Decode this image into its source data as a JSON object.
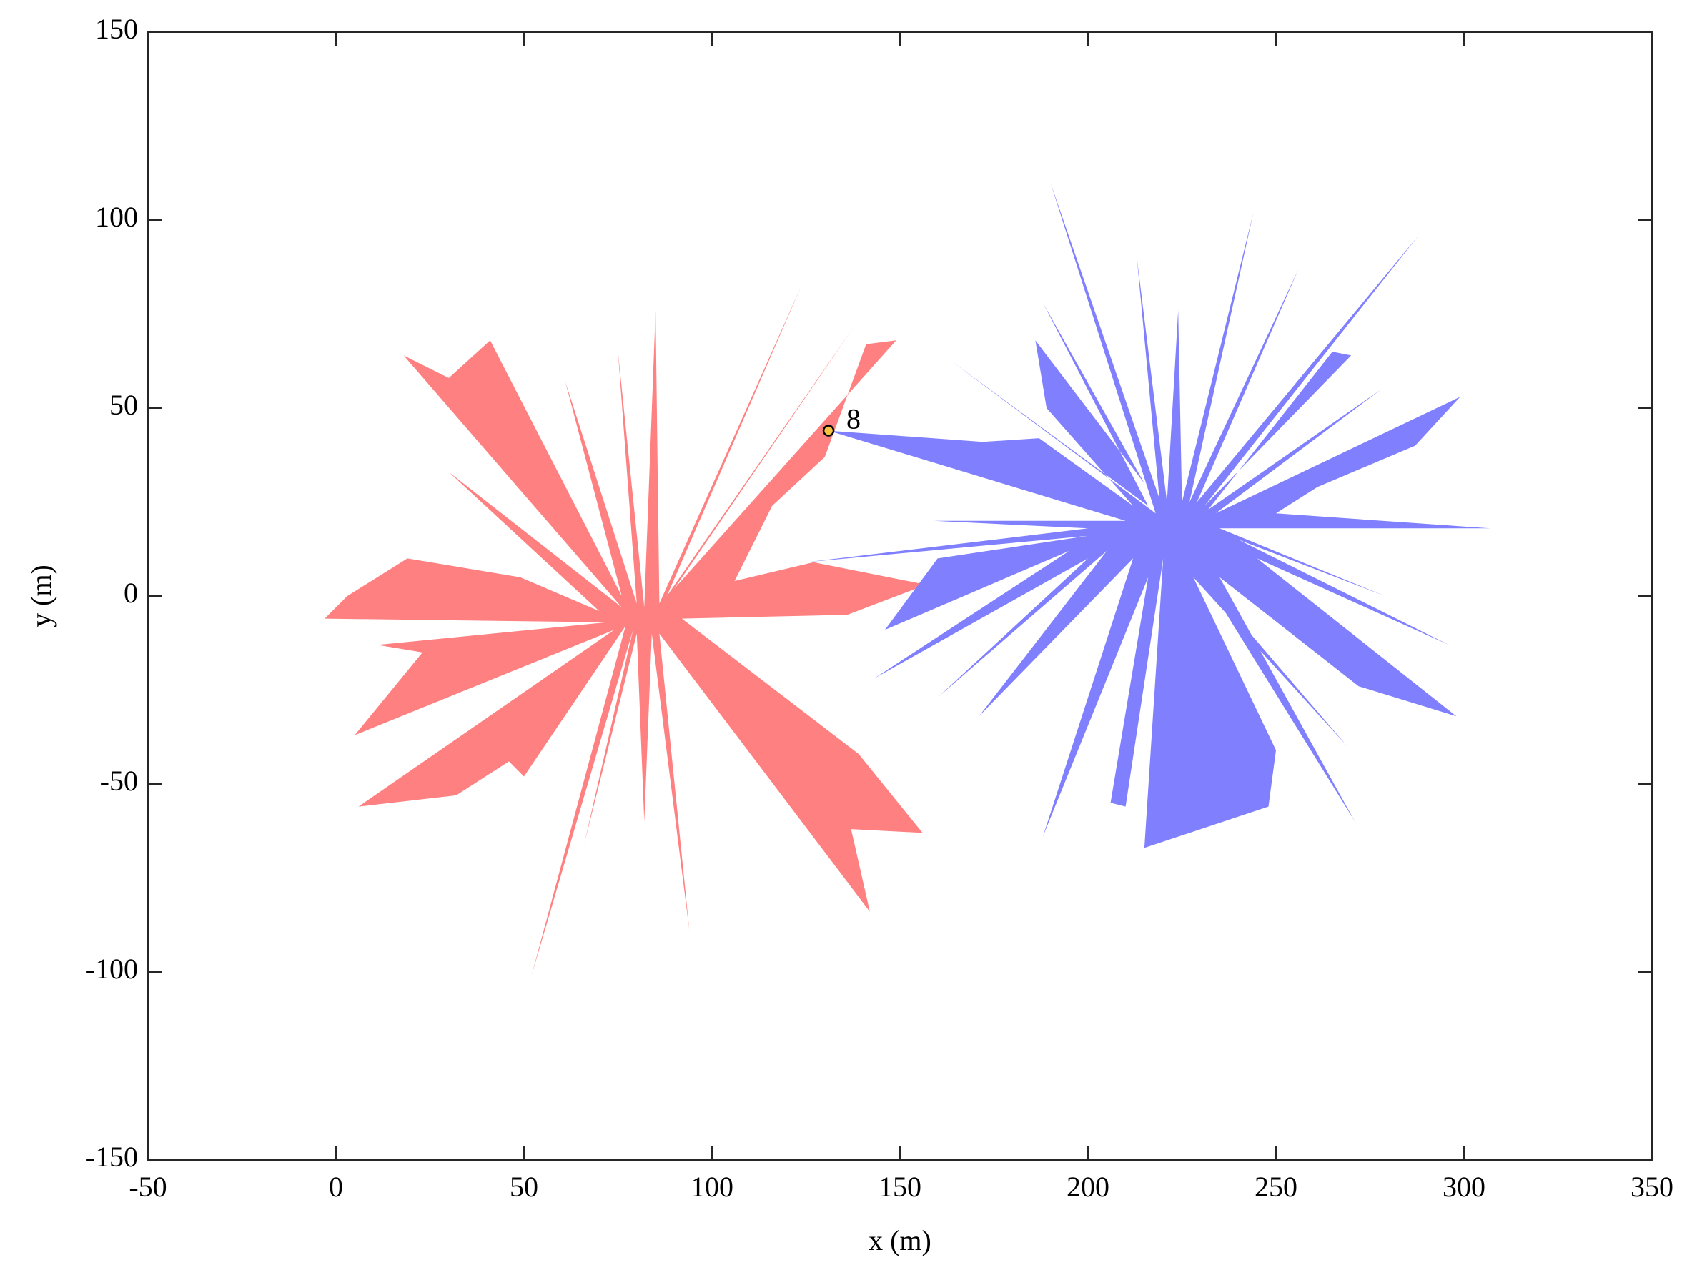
{
  "chart_data": {
    "type": "polygon",
    "xlabel": "x (m)",
    "ylabel": "y (m)",
    "xlim": [
      -50,
      350
    ],
    "xticks": [
      -50,
      0,
      50,
      100,
      150,
      200,
      250,
      300,
      350
    ],
    "ylim": [
      -150,
      150
    ],
    "yticks": [
      -150,
      -100,
      -50,
      0,
      50,
      100,
      150
    ],
    "grid": false,
    "series": [
      {
        "color": "#ff8080",
        "x": [
          18,
          30,
          41,
          76,
          61,
          80,
          75,
          82,
          85,
          86,
          124,
          88,
          138,
          90,
          149,
          141,
          130,
          116,
          106,
          127,
          157,
          136,
          92,
          139,
          156,
          137,
          142,
          86,
          94,
          84,
          82,
          80,
          66,
          79,
          52,
          77,
          50,
          46,
          32,
          6,
          74,
          5,
          23,
          11,
          72,
          -3,
          3,
          19,
          49,
          70,
          30,
          76
        ],
        "y": [
          64,
          58,
          68,
          0,
          57,
          -2,
          65,
          -3,
          76,
          -2,
          83,
          0,
          72,
          2,
          68,
          67,
          37,
          24,
          4,
          9,
          3,
          -5,
          -6,
          -42,
          -63,
          -62,
          -84,
          -10,
          -89,
          -10,
          -60,
          -10,
          -66,
          -9,
          -101,
          -8,
          -48,
          -44,
          -53,
          -56,
          -9,
          -37,
          -15,
          -13,
          -7,
          -6,
          0,
          10,
          5,
          -4,
          33,
          -3
        ]
      },
      {
        "color": "#8080ff",
        "x": [
          131,
          172,
          187,
          212,
          189,
          186,
          215,
          188,
          216,
          163,
          218,
          190,
          219,
          213,
          221,
          224,
          225,
          244,
          227,
          256,
          229,
          288,
          231,
          270,
          265,
          232,
          278,
          234,
          299,
          287,
          261,
          250,
          307,
          235,
          279,
          240,
          296,
          245,
          298,
          272,
          235,
          271,
          232,
          269,
          228,
          250,
          248,
          215,
          220,
          210,
          206,
          216,
          188,
          212,
          171,
          205,
          160,
          200,
          143,
          195,
          146,
          160,
          200,
          125,
          200,
          159,
          210
        ],
        "y": [
          44,
          41,
          42,
          24,
          50,
          68,
          30,
          78,
          24,
          63,
          22,
          110,
          26,
          90,
          25,
          76,
          25,
          102,
          25,
          87,
          25,
          96,
          24,
          64,
          65,
          23,
          55,
          22,
          53,
          40,
          29,
          22,
          18,
          18,
          0,
          15,
          -13,
          10,
          -32,
          -24,
          5,
          -60,
          3,
          -40,
          5,
          -41,
          -56,
          -67,
          10,
          -56,
          -55,
          5,
          -64,
          10,
          -32,
          12,
          -27,
          10,
          -22,
          12,
          -9,
          10,
          16,
          9,
          18,
          20,
          20
        ]
      }
    ],
    "annotations": [
      {
        "x": 131,
        "y": 44,
        "label": "8",
        "color": "#f5c242"
      }
    ]
  }
}
